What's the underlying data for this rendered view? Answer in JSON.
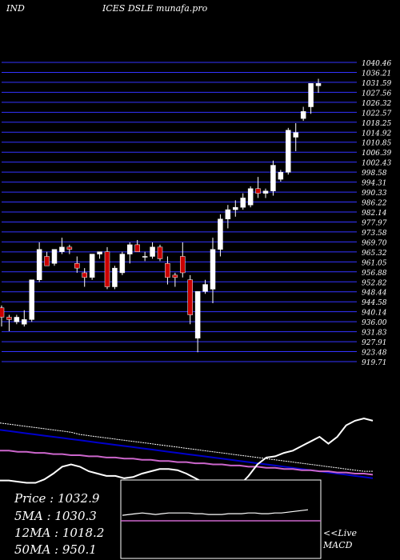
{
  "header": {
    "left": "IND",
    "right": "ICES DSLE munafa.pro"
  },
  "colors": {
    "background": "#000000",
    "grid": "#3333ff",
    "up": "#ffffff",
    "down": "#cc0000",
    "ema_long": "#0000cc",
    "ema_short": "#ffffff",
    "ma_slow": "#cc66cc",
    "macd_line": "#cc66cc"
  },
  "chart_data": {
    "type": "candlestick",
    "y_axis": {
      "ylim": [
        915,
        1043
      ],
      "tick_labels": [
        "1040.46",
        "1036.21",
        "1031.59",
        "1027.56",
        "1026.32",
        "1022.57",
        "1018.25",
        "1014.92",
        "1010.85",
        "1006.39",
        "1002.43",
        "998.58",
        "994.31",
        "990.33",
        "986.22",
        "982.14",
        "977.97",
        "973.58",
        "969.70",
        "965.32",
        "961.05",
        "956.88",
        "952.82",
        "948.44",
        "944.58",
        "940.14",
        "936.00",
        "931.83",
        "927.91",
        "923.48",
        "919.71"
      ]
    },
    "candles": [
      {
        "o": 938,
        "h": 939,
        "l": 930,
        "c": 934
      },
      {
        "o": 934,
        "h": 935,
        "l": 928,
        "c": 933
      },
      {
        "o": 932,
        "h": 935,
        "l": 931,
        "c": 934
      },
      {
        "o": 931,
        "h": 937,
        "l": 930,
        "c": 933
      },
      {
        "o": 933,
        "h": 950,
        "l": 932,
        "c": 950
      },
      {
        "o": 950,
        "h": 966,
        "l": 949,
        "c": 963
      },
      {
        "o": 960,
        "h": 962,
        "l": 957,
        "c": 956
      },
      {
        "o": 957,
        "h": 963,
        "l": 956,
        "c": 963
      },
      {
        "o": 962,
        "h": 968,
        "l": 961,
        "c": 964
      },
      {
        "o": 964,
        "h": 965,
        "l": 961,
        "c": 963
      },
      {
        "o": 957,
        "h": 960,
        "l": 953,
        "c": 955
      },
      {
        "o": 953,
        "h": 955,
        "l": 947,
        "c": 951
      },
      {
        "o": 951,
        "h": 961,
        "l": 950,
        "c": 961
      },
      {
        "o": 961,
        "h": 962,
        "l": 959,
        "c": 962
      },
      {
        "o": 962,
        "h": 964,
        "l": 946,
        "c": 947
      },
      {
        "o": 947,
        "h": 956,
        "l": 946,
        "c": 955
      },
      {
        "o": 953,
        "h": 962,
        "l": 952,
        "c": 961
      },
      {
        "o": 961,
        "h": 966,
        "l": 957,
        "c": 965
      },
      {
        "o": 965,
        "h": 967,
        "l": 962,
        "c": 962
      },
      {
        "o": 960,
        "h": 962,
        "l": 958,
        "c": 960
      },
      {
        "o": 960,
        "h": 966,
        "l": 959,
        "c": 964
      },
      {
        "o": 964,
        "h": 965,
        "l": 958,
        "c": 959
      },
      {
        "o": 957,
        "h": 960,
        "l": 948,
        "c": 951
      },
      {
        "o": 952,
        "h": 953,
        "l": 947,
        "c": 951
      },
      {
        "o": 960,
        "h": 966,
        "l": 951,
        "c": 953
      },
      {
        "o": 950,
        "h": 952,
        "l": 931,
        "c": 935
      },
      {
        "o": 925,
        "h": 945,
        "l": 919,
        "c": 945
      },
      {
        "o": 945,
        "h": 950,
        "l": 944,
        "c": 948
      },
      {
        "o": 946,
        "h": 968,
        "l": 940,
        "c": 963
      },
      {
        "o": 963,
        "h": 978,
        "l": 960,
        "c": 976
      },
      {
        "o": 976,
        "h": 982,
        "l": 972,
        "c": 980
      },
      {
        "o": 980,
        "h": 984,
        "l": 977,
        "c": 981
      },
      {
        "o": 981,
        "h": 987,
        "l": 980,
        "c": 985
      },
      {
        "o": 982,
        "h": 990,
        "l": 981,
        "c": 989
      },
      {
        "o": 989,
        "h": 994,
        "l": 985,
        "c": 987
      },
      {
        "o": 987,
        "h": 989,
        "l": 985,
        "c": 988
      },
      {
        "o": 988,
        "h": 1001,
        "l": 986,
        "c": 999
      },
      {
        "o": 993,
        "h": 997,
        "l": 992,
        "c": 996
      },
      {
        "o": 996,
        "h": 1015,
        "l": 995,
        "c": 1014
      },
      {
        "o": 1011,
        "h": 1017,
        "l": 1005,
        "c": 1013
      },
      {
        "o": 1019,
        "h": 1024,
        "l": 1018,
        "c": 1022
      },
      {
        "o": 1024,
        "h": 1034,
        "l": 1021,
        "c": 1034
      },
      {
        "o": 1033,
        "h": 1036,
        "l": 1030,
        "c": 1034
      }
    ],
    "indicators": {
      "ema_white": [
        60,
        59,
        58,
        57,
        56,
        55,
        54,
        53,
        52,
        50,
        49,
        48,
        47,
        46,
        45,
        44,
        43,
        42,
        41,
        40,
        39,
        38,
        37,
        36,
        35,
        34,
        33,
        32,
        31,
        30,
        29,
        28,
        27,
        26,
        25,
        24,
        23,
        22,
        21,
        20,
        19,
        18,
        18
      ],
      "ema_blue": [
        54,
        53,
        52,
        51,
        50,
        49,
        48,
        47,
        46,
        45,
        44,
        43,
        42,
        41,
        40,
        39,
        38,
        37,
        36,
        35,
        34,
        33,
        32,
        31,
        30,
        29,
        28,
        27,
        26,
        25,
        24,
        23,
        22,
        21,
        20,
        19,
        18,
        17,
        16,
        15,
        14,
        13,
        12
      ],
      "ma_magenta": [
        36,
        36,
        35,
        35,
        34,
        34,
        33,
        33,
        32,
        32,
        31,
        31,
        30,
        30,
        29,
        29,
        28,
        28,
        27,
        27,
        26,
        26,
        25,
        25,
        24,
        24,
        23,
        23,
        22,
        22,
        21,
        21,
        20,
        20,
        19,
        19,
        18,
        18,
        17,
        17,
        16,
        16,
        15
      ],
      "macd_panel_line": [
        55,
        56,
        57,
        58,
        57,
        56,
        57,
        58,
        58,
        58,
        58,
        57,
        57,
        56,
        56,
        56,
        57,
        57,
        57,
        58,
        58,
        57,
        57,
        58,
        58,
        59,
        60,
        61,
        62
      ]
    }
  },
  "stats": [
    {
      "label": "Price",
      "value": "1032.9"
    },
    {
      "label": "5MA",
      "value": "1030.3"
    },
    {
      "label": "12MA",
      "value": "1018.2"
    },
    {
      "label": "50MA",
      "value": "950.1"
    }
  ],
  "macd_caption": {
    "line1": "<<Live",
    "line2": "MACD"
  }
}
